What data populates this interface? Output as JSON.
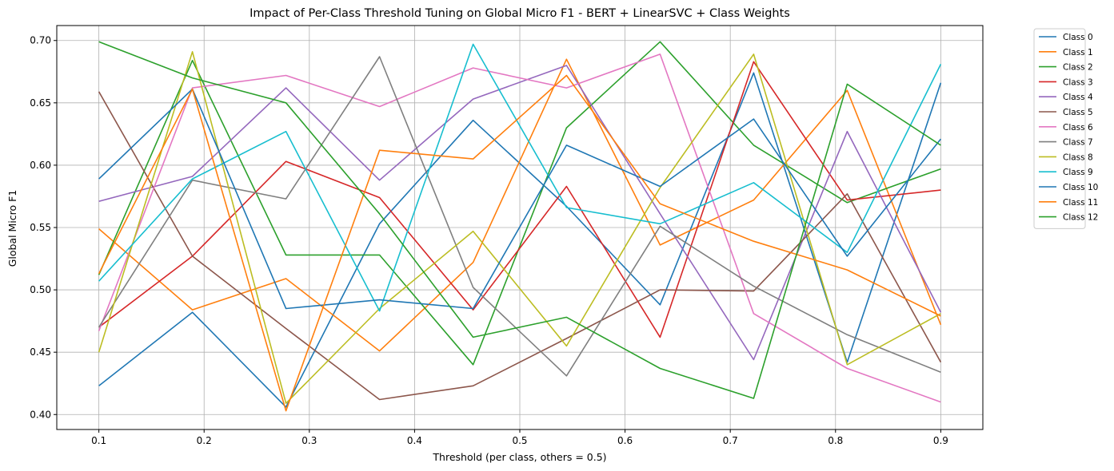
{
  "chart_data": {
    "type": "line",
    "title": "Impact of Per-Class Threshold Tuning on Global Micro F1 - BERT + LinearSVC + Class Weights",
    "xlabel": "Threshold (per class, others = 0.5)",
    "ylabel": "Global Micro F1",
    "xlim": [
      0.06,
      0.94
    ],
    "ylim": [
      0.388,
      0.712
    ],
    "xticks": [
      0.1,
      0.2,
      0.3,
      0.4,
      0.5,
      0.6,
      0.7,
      0.8,
      0.9
    ],
    "xtick_labels": [
      "0.1",
      "0.2",
      "0.3",
      "0.4",
      "0.5",
      "0.6",
      "0.7",
      "0.8",
      "0.9"
    ],
    "yticks": [
      0.4,
      0.45,
      0.5,
      0.55,
      0.6,
      0.65,
      0.7
    ],
    "ytick_labels": [
      "0.40",
      "0.45",
      "0.50",
      "0.55",
      "0.60",
      "0.65",
      "0.70"
    ],
    "grid": true,
    "legend_placement": "outside-top-right",
    "x": [
      0.1,
      0.1889,
      0.2778,
      0.3667,
      0.4556,
      0.5444,
      0.6333,
      0.7222,
      0.8111,
      0.9
    ],
    "series": [
      {
        "name": "Class 0",
        "color": "#1f77b4",
        "values": [
          0.423,
          0.482,
          0.406,
          0.553,
          0.636,
          0.567,
          0.488,
          0.674,
          0.442,
          0.666
        ]
      },
      {
        "name": "Class 1",
        "color": "#ff7f0e",
        "values": [
          0.549,
          0.484,
          0.509,
          0.451,
          0.522,
          0.685,
          0.536,
          0.572,
          0.66,
          0.472
        ]
      },
      {
        "name": "Class 2",
        "color": "#2ca02c",
        "values": [
          0.512,
          0.684,
          0.528,
          0.528,
          0.44,
          0.63,
          0.699,
          0.616,
          0.57,
          0.597
        ]
      },
      {
        "name": "Class 3",
        "color": "#d62728",
        "values": [
          0.47,
          0.527,
          0.603,
          0.574,
          0.484,
          0.583,
          0.462,
          0.683,
          0.572,
          0.58
        ]
      },
      {
        "name": "Class 4",
        "color": "#9467bd",
        "values": [
          0.571,
          0.591,
          0.662,
          0.588,
          0.653,
          0.68,
          0.561,
          0.444,
          0.627,
          0.482
        ]
      },
      {
        "name": "Class 5",
        "color": "#8c564b",
        "values": [
          0.659,
          0.527,
          0.469,
          0.412,
          0.423,
          0.461,
          0.5,
          0.499,
          0.577,
          0.442
        ]
      },
      {
        "name": "Class 6",
        "color": "#e377c2",
        "values": [
          0.467,
          0.662,
          0.672,
          0.647,
          0.678,
          0.662,
          0.689,
          0.481,
          0.437,
          0.41
        ]
      },
      {
        "name": "Class 7",
        "color": "#7f7f7f",
        "values": [
          0.47,
          0.588,
          0.573,
          0.687,
          0.502,
          0.431,
          0.551,
          0.503,
          0.464,
          0.434
        ]
      },
      {
        "name": "Class 8",
        "color": "#bcbd22",
        "values": [
          0.45,
          0.691,
          0.409,
          0.485,
          0.547,
          0.455,
          0.582,
          0.689,
          0.44,
          0.481
        ]
      },
      {
        "name": "Class 9",
        "color": "#17becf",
        "values": [
          0.507,
          0.589,
          0.627,
          0.483,
          0.697,
          0.566,
          0.553,
          0.586,
          0.53,
          0.681
        ]
      },
      {
        "name": "Class 10",
        "color": "#1f77b4",
        "values": [
          0.589,
          0.661,
          0.485,
          0.492,
          0.485,
          0.616,
          0.583,
          0.637,
          0.527,
          0.621
        ]
      },
      {
        "name": "Class 11",
        "color": "#ff7f0e",
        "values": [
          0.513,
          0.661,
          0.403,
          0.612,
          0.605,
          0.672,
          0.569,
          0.539,
          0.516,
          0.479
        ]
      },
      {
        "name": "Class 12",
        "color": "#2ca02c",
        "values": [
          0.699,
          0.67,
          0.65,
          0.561,
          0.462,
          0.478,
          0.437,
          0.413,
          0.665,
          0.616
        ]
      }
    ]
  }
}
